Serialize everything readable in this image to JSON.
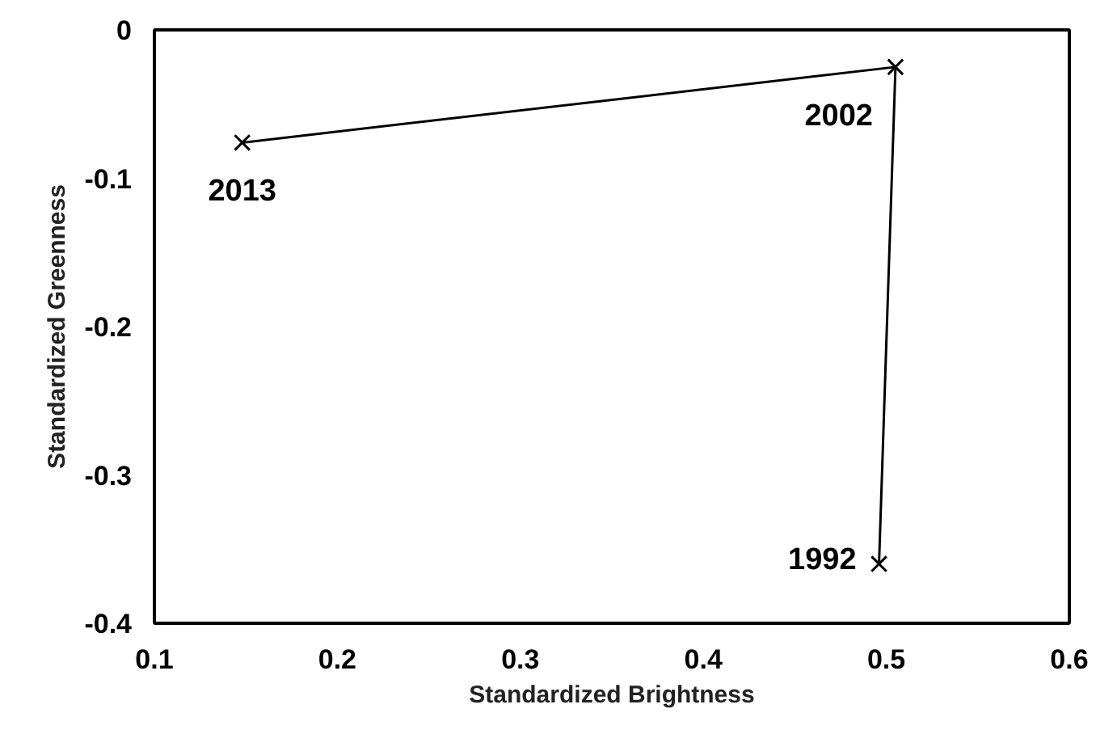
{
  "chart_data": {
    "type": "line",
    "xlabel": "Standardized Brightness",
    "ylabel": "Standardized Greenness",
    "x": [
      0.496,
      0.505,
      0.148
    ],
    "series": [
      {
        "color": "#000000",
        "values": [
          -0.36,
          -0.025,
          -0.076
        ]
      }
    ],
    "marker": "cross",
    "line_style": "solid",
    "xlim": [
      0.1,
      0.6
    ],
    "xticks": [
      0.1,
      0.2,
      0.3,
      0.4,
      0.5,
      0.6
    ],
    "ylim": [
      -0.4,
      0
    ],
    "yticks": [
      -0.4,
      -0.3,
      -0.2,
      -0.1,
      0
    ],
    "grid": false,
    "annotations": [
      {
        "text": "1992",
        "x": 0.496,
        "y": -0.36
      },
      {
        "text": "2002",
        "x": 0.505,
        "y": -0.025
      },
      {
        "text": "2013",
        "x": 0.148,
        "y": -0.076
      }
    ]
  }
}
